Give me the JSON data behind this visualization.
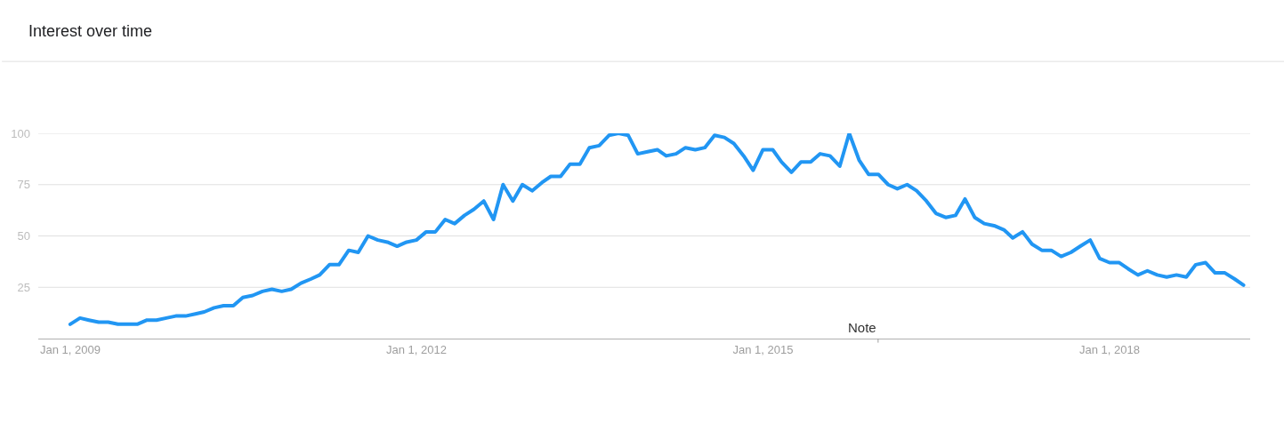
{
  "chart_data": {
    "type": "line",
    "title": "Interest over time",
    "x": [
      "2009-01",
      "2009-02",
      "2009-03",
      "2009-04",
      "2009-05",
      "2009-06",
      "2009-07",
      "2009-08",
      "2009-09",
      "2009-10",
      "2009-11",
      "2009-12",
      "2010-01",
      "2010-02",
      "2010-03",
      "2010-04",
      "2010-05",
      "2010-06",
      "2010-07",
      "2010-08",
      "2010-09",
      "2010-10",
      "2010-11",
      "2010-12",
      "2011-01",
      "2011-02",
      "2011-03",
      "2011-04",
      "2011-05",
      "2011-06",
      "2011-07",
      "2011-08",
      "2011-09",
      "2011-10",
      "2011-11",
      "2011-12",
      "2012-01",
      "2012-02",
      "2012-03",
      "2012-04",
      "2012-05",
      "2012-06",
      "2012-07",
      "2012-08",
      "2012-09",
      "2012-10",
      "2012-11",
      "2012-12",
      "2013-01",
      "2013-02",
      "2013-03",
      "2013-04",
      "2013-05",
      "2013-06",
      "2013-07",
      "2013-08",
      "2013-09",
      "2013-10",
      "2013-11",
      "2013-12",
      "2014-01",
      "2014-02",
      "2014-03",
      "2014-04",
      "2014-05",
      "2014-06",
      "2014-07",
      "2014-08",
      "2014-09",
      "2014-10",
      "2014-11",
      "2014-12",
      "2015-01",
      "2015-02",
      "2015-03",
      "2015-04",
      "2015-05",
      "2015-06",
      "2015-07",
      "2015-08",
      "2015-09",
      "2015-10",
      "2015-11",
      "2015-12",
      "2016-01",
      "2016-02",
      "2016-03",
      "2016-04",
      "2016-05",
      "2016-06",
      "2016-07",
      "2016-08",
      "2016-09",
      "2016-10",
      "2016-11",
      "2016-12",
      "2017-01",
      "2017-02",
      "2017-03",
      "2017-04",
      "2017-05",
      "2017-06",
      "2017-07",
      "2017-08",
      "2017-09",
      "2017-10",
      "2017-11",
      "2017-12",
      "2018-01",
      "2018-02",
      "2018-03",
      "2018-04",
      "2018-05",
      "2018-06",
      "2018-07",
      "2018-08",
      "2018-09",
      "2018-10",
      "2018-11",
      "2018-12",
      "2019-01",
      "2019-02",
      "2019-03"
    ],
    "series": [
      {
        "color": "#2196f3",
        "values": [
          7,
          10,
          9,
          8,
          8,
          7,
          7,
          7,
          9,
          9,
          10,
          11,
          11,
          12,
          13,
          15,
          16,
          16,
          20,
          21,
          23,
          24,
          23,
          24,
          27,
          29,
          31,
          36,
          36,
          43,
          42,
          50,
          48,
          47,
          45,
          47,
          48,
          52,
          52,
          58,
          56,
          60,
          63,
          67,
          58,
          75,
          67,
          75,
          72,
          76,
          79,
          79,
          85,
          85,
          93,
          94,
          99,
          100,
          99,
          90,
          91,
          92,
          89,
          90,
          93,
          92,
          93,
          99,
          98,
          95,
          89,
          82,
          92,
          92,
          86,
          81,
          86,
          86,
          90,
          89,
          84,
          100,
          87,
          80,
          80,
          75,
          73,
          75,
          72,
          67,
          61,
          59,
          60,
          68,
          59,
          56,
          55,
          53,
          49,
          52,
          46,
          43,
          43,
          40,
          42,
          45,
          48,
          39,
          37,
          37,
          34,
          31,
          33,
          31,
          30,
          31,
          30,
          36,
          37,
          32,
          32,
          29,
          26
        ]
      }
    ],
    "xlim": [
      "2008-09-22",
      "2019-03-22"
    ],
    "xticks": [
      {
        "value": "2009-01-01",
        "label": "Jan 1, 2009"
      },
      {
        "value": "2012-01-01",
        "label": "Jan 1, 2012"
      },
      {
        "value": "2015-01-01",
        "label": "Jan 1, 2015"
      },
      {
        "value": "2018-01-01",
        "label": "Jan 1, 2018"
      }
    ],
    "ylim": [
      0,
      100
    ],
    "yticks": [
      25,
      50,
      75,
      100
    ],
    "annotations": [
      "Note"
    ],
    "grid": "y",
    "marker": "none",
    "line_style": "solid"
  }
}
